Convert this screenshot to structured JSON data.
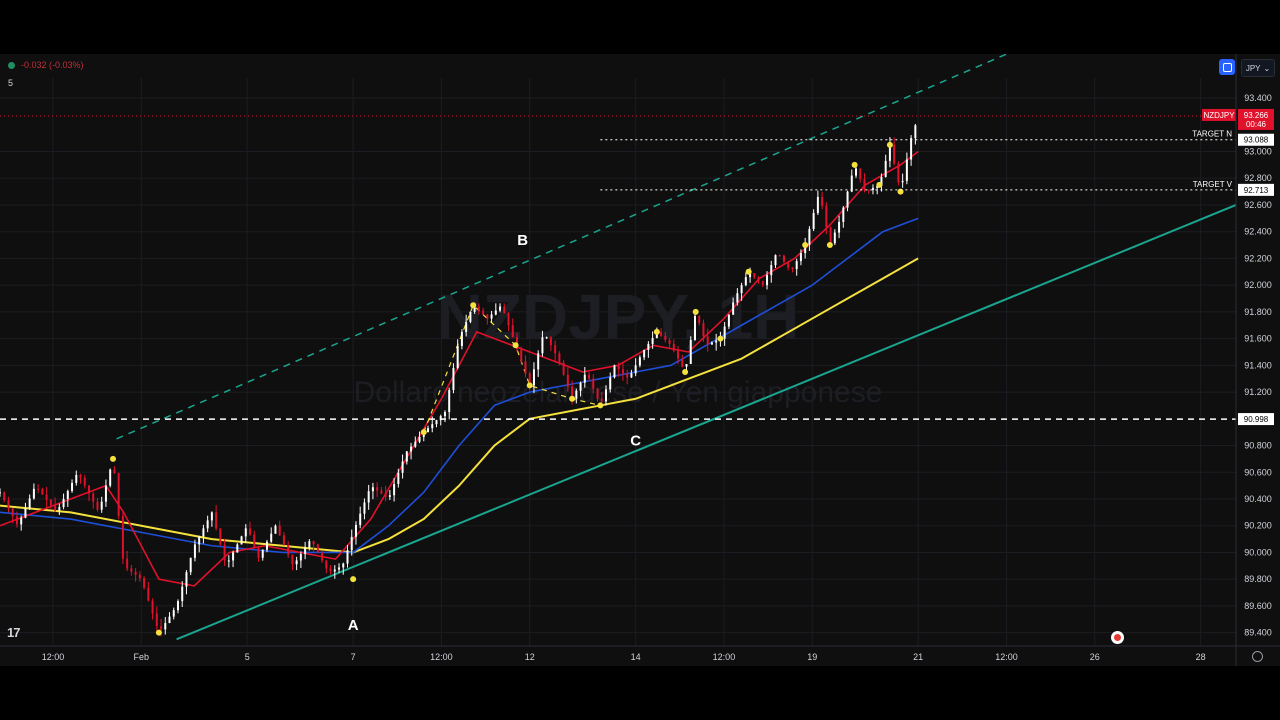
{
  "header": {
    "change_text": "-0.032 (-0.03%)",
    "interval_label": "5",
    "currency_button": "JPY"
  },
  "watermark": {
    "symbol": "NZDJPY, 1H",
    "description": "Dollaro neozelandese / Yen giapponese"
  },
  "colors": {
    "background": "#0f0f0f",
    "candle_up": "#ffffff",
    "candle_down": "#e0112b",
    "ema_fast": "#e0112b",
    "ema_mid": "#1e4fd8",
    "ema_slow": "#f5e13d",
    "trendline": "#1aa58f",
    "pivot_marker": "#f5e13d"
  },
  "chart_data": {
    "type": "candlestick",
    "symbol": "NZDJPY",
    "timeframe": "1H",
    "ylim": [
      89.3,
      93.55
    ],
    "y_ticks": [
      "93.400",
      "93.000",
      "92.800",
      "92.600",
      "92.400",
      "92.200",
      "92.000",
      "91.800",
      "91.600",
      "91.400",
      "91.200",
      "90.800",
      "90.600",
      "90.400",
      "90.200",
      "90.000",
      "89.800",
      "89.600",
      "89.400"
    ],
    "x_ticks": [
      {
        "label": "12:00",
        "x": 1.5
      },
      {
        "label": "Feb",
        "x": 4
      },
      {
        "label": "5",
        "x": 7
      },
      {
        "label": "7",
        "x": 10
      },
      {
        "label": "12:00",
        "x": 12.5
      },
      {
        "label": "12",
        "x": 15
      },
      {
        "label": "14",
        "x": 18
      },
      {
        "label": "12:00",
        "x": 20.5
      },
      {
        "label": "19",
        "x": 23
      },
      {
        "label": "21",
        "x": 26
      },
      {
        "label": "12:00",
        "x": 28.5
      },
      {
        "label": "26",
        "x": 31
      },
      {
        "label": "28",
        "x": 34
      }
    ],
    "xlim": [
      0,
      35
    ],
    "price_path": [
      [
        0,
        90.45
      ],
      [
        0.5,
        90.2
      ],
      [
        1,
        90.5
      ],
      [
        1.6,
        90.3
      ],
      [
        2.2,
        90.6
      ],
      [
        2.8,
        90.3
      ],
      [
        3.2,
        90.7
      ],
      [
        3.5,
        89.9
      ],
      [
        4,
        89.8
      ],
      [
        4.5,
        89.4
      ],
      [
        5,
        89.6
      ],
      [
        5.5,
        90.05
      ],
      [
        6,
        90.3
      ],
      [
        6.4,
        89.9
      ],
      [
        7,
        90.2
      ],
      [
        7.3,
        89.95
      ],
      [
        7.8,
        90.2
      ],
      [
        8.3,
        89.9
      ],
      [
        8.8,
        90.1
      ],
      [
        9.3,
        89.85
      ],
      [
        9.7,
        89.9
      ],
      [
        10,
        90.15
      ],
      [
        10.5,
        90.5
      ],
      [
        11,
        90.4
      ],
      [
        11.5,
        90.75
      ],
      [
        12,
        90.9
      ],
      [
        12.6,
        91.05
      ],
      [
        13,
        91.6
      ],
      [
        13.4,
        91.85
      ],
      [
        13.8,
        91.75
      ],
      [
        14.2,
        91.85
      ],
      [
        14.6,
        91.55
      ],
      [
        15,
        91.25
      ],
      [
        15.4,
        91.65
      ],
      [
        15.8,
        91.45
      ],
      [
        16.2,
        91.15
      ],
      [
        16.6,
        91.35
      ],
      [
        17,
        91.1
      ],
      [
        17.4,
        91.4
      ],
      [
        17.8,
        91.3
      ],
      [
        18.2,
        91.5
      ],
      [
        18.6,
        91.65
      ],
      [
        19,
        91.55
      ],
      [
        19.4,
        91.35
      ],
      [
        19.7,
        91.8
      ],
      [
        20,
        91.55
      ],
      [
        20.4,
        91.6
      ],
      [
        20.8,
        91.9
      ],
      [
        21.2,
        92.1
      ],
      [
        21.6,
        92.0
      ],
      [
        22,
        92.25
      ],
      [
        22.4,
        92.1
      ],
      [
        22.8,
        92.3
      ],
      [
        23.2,
        92.7
      ],
      [
        23.5,
        92.3
      ],
      [
        23.8,
        92.5
      ],
      [
        24.2,
        92.9
      ],
      [
        24.5,
        92.7
      ],
      [
        24.9,
        92.75
      ],
      [
        25.2,
        93.05
      ],
      [
        25.5,
        92.7
      ],
      [
        25.8,
        93.1
      ],
      [
        26.0,
        93.26
      ]
    ],
    "ema_fast_path": [
      [
        0,
        90.2
      ],
      [
        1,
        90.3
      ],
      [
        2,
        90.4
      ],
      [
        3,
        90.5
      ],
      [
        3.5,
        90.3
      ],
      [
        4.5,
        89.8
      ],
      [
        5.5,
        89.75
      ],
      [
        6.5,
        90.0
      ],
      [
        7.5,
        90.05
      ],
      [
        8.5,
        90.0
      ],
      [
        9.5,
        89.95
      ],
      [
        10.5,
        90.25
      ],
      [
        11.5,
        90.7
      ],
      [
        12.5,
        91.15
      ],
      [
        13.5,
        91.65
      ],
      [
        14.5,
        91.55
      ],
      [
        15.5,
        91.45
      ],
      [
        16.5,
        91.35
      ],
      [
        17.5,
        91.4
      ],
      [
        18.5,
        91.55
      ],
      [
        19.5,
        91.5
      ],
      [
        20.5,
        91.75
      ],
      [
        21.5,
        92.05
      ],
      [
        22.5,
        92.2
      ],
      [
        23.5,
        92.45
      ],
      [
        24.5,
        92.75
      ],
      [
        25.5,
        92.9
      ],
      [
        26,
        93.0
      ]
    ],
    "ema_mid_path": [
      [
        0,
        90.3
      ],
      [
        2,
        90.25
      ],
      [
        4,
        90.15
      ],
      [
        6,
        90.05
      ],
      [
        8,
        90.0
      ],
      [
        10,
        90.0
      ],
      [
        11,
        90.2
      ],
      [
        12,
        90.45
      ],
      [
        13,
        90.8
      ],
      [
        14,
        91.1
      ],
      [
        15,
        91.2
      ],
      [
        16,
        91.25
      ],
      [
        17,
        91.3
      ],
      [
        18,
        91.35
      ],
      [
        19,
        91.4
      ],
      [
        20,
        91.55
      ],
      [
        21,
        91.7
      ],
      [
        22,
        91.85
      ],
      [
        23,
        92.0
      ],
      [
        24,
        92.2
      ],
      [
        25,
        92.4
      ],
      [
        26,
        92.5
      ]
    ],
    "ema_slow_path": [
      [
        0,
        90.35
      ],
      [
        2,
        90.3
      ],
      [
        4,
        90.2
      ],
      [
        6,
        90.1
      ],
      [
        8,
        90.05
      ],
      [
        10,
        90.0
      ],
      [
        11,
        90.1
      ],
      [
        12,
        90.25
      ],
      [
        13,
        90.5
      ],
      [
        14,
        90.8
      ],
      [
        15,
        91.0
      ],
      [
        16,
        91.05
      ],
      [
        17,
        91.1
      ],
      [
        18,
        91.15
      ],
      [
        19,
        91.25
      ],
      [
        20,
        91.35
      ],
      [
        21,
        91.45
      ],
      [
        22,
        91.6
      ],
      [
        23,
        91.75
      ],
      [
        24,
        91.9
      ],
      [
        25,
        92.05
      ],
      [
        26,
        92.2
      ]
    ],
    "trendline_lower": [
      [
        5.0,
        89.35
      ],
      [
        35,
        92.6
      ]
    ],
    "trendline_upper": [
      [
        3.3,
        90.85
      ],
      [
        30,
        93.9
      ]
    ],
    "pivot_points": [
      [
        3.2,
        90.7
      ],
      [
        4.5,
        89.4
      ],
      [
        10,
        89.8
      ],
      [
        12,
        90.9
      ],
      [
        13.4,
        91.85
      ],
      [
        14.6,
        91.55
      ],
      [
        15.0,
        91.25
      ],
      [
        16.2,
        91.15
      ],
      [
        17.0,
        91.1
      ],
      [
        18.6,
        91.65
      ],
      [
        19.4,
        91.35
      ],
      [
        19.7,
        91.8
      ],
      [
        20.4,
        91.6
      ],
      [
        21.2,
        92.1
      ],
      [
        22.8,
        92.3
      ],
      [
        23.5,
        92.3
      ],
      [
        24.2,
        92.9
      ],
      [
        24.9,
        92.75
      ],
      [
        25.2,
        93.05
      ],
      [
        25.5,
        92.7
      ]
    ],
    "horizontal_levels": [
      {
        "price": 90.998,
        "label": "90.998",
        "style": "dashed",
        "color": "#ffffff"
      },
      {
        "price": 93.088,
        "label": "93.088",
        "name": "TARGET N",
        "style": "dotted",
        "color": "#ffffff"
      },
      {
        "price": 92.713,
        "label": "92.713",
        "name": "TARGET V",
        "style": "dotted",
        "color": "#ffffff"
      }
    ],
    "last_price": {
      "symbol": "NZDJPY",
      "price": "93.266",
      "countdown": "00:46"
    },
    "wave_labels": [
      {
        "text": "A",
        "x": 10,
        "y": 89.42
      },
      {
        "text": "B",
        "x": 14.8,
        "y": 92.3
      },
      {
        "text": "C",
        "x": 18.0,
        "y": 90.8
      }
    ]
  }
}
